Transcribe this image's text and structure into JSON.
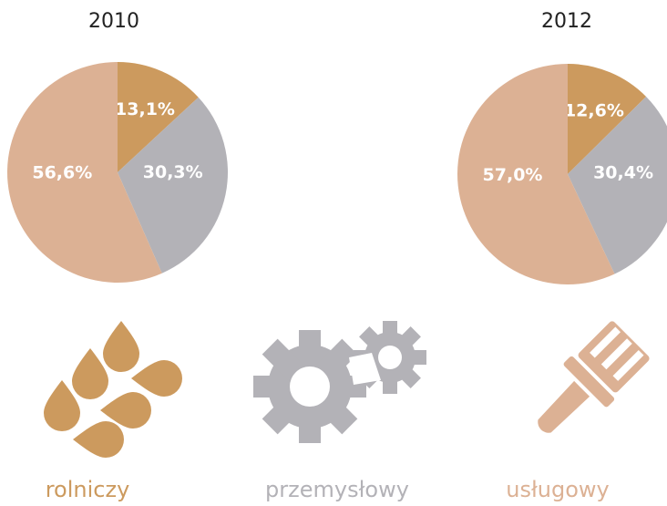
{
  "chart_data": {
    "type": "pie",
    "categories": [
      "rolniczy",
      "przemysłowy",
      "usługowy"
    ],
    "colors": [
      "#cc9a5e",
      "#b3b2b7",
      "#dcb194"
    ],
    "series": [
      {
        "name": "2010",
        "values": [
          13.1,
          30.3,
          56.6
        ],
        "value_labels": [
          "13,1%",
          "30,3%",
          "56,6%"
        ]
      },
      {
        "name": "2012",
        "values": [
          12.6,
          30.4,
          57.0
        ],
        "value_labels": [
          "12,6%",
          "30,4%",
          "57,0%"
        ]
      }
    ]
  }
}
